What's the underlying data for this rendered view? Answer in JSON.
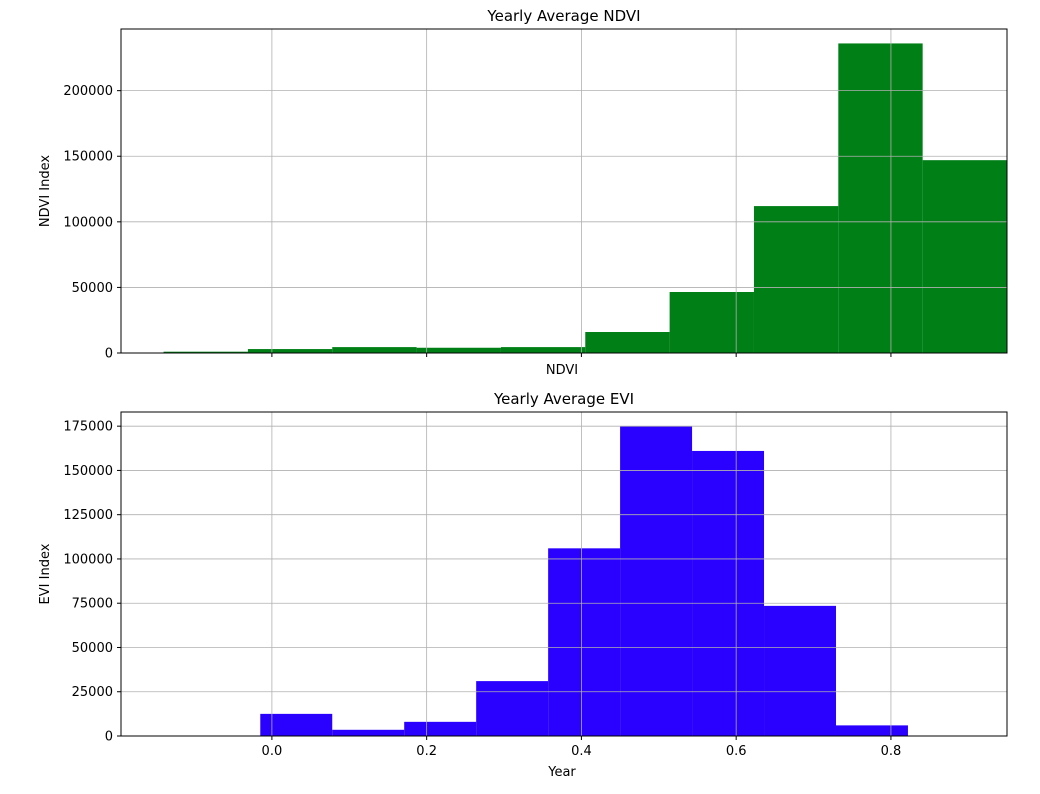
{
  "chart_data": [
    {
      "type": "bar",
      "title": "Yearly Average NDVI",
      "xlabel": "NDVI",
      "ylabel": "NDVI Index",
      "xlim": [
        -0.195,
        0.95
      ],
      "ylim": [
        0,
        247000
      ],
      "x_ticks": [
        0.0,
        0.2,
        0.4,
        0.6,
        0.8
      ],
      "x_tick_labels_shown": false,
      "y_ticks": [
        0,
        50000,
        100000,
        150000,
        200000
      ],
      "grid": true,
      "color": "#007f17",
      "bins": [
        {
          "x0": -0.14,
          "x1": -0.031,
          "value": 1000
        },
        {
          "x0": -0.031,
          "x1": 0.078,
          "value": 3000
        },
        {
          "x0": 0.078,
          "x1": 0.187,
          "value": 4500
        },
        {
          "x0": 0.187,
          "x1": 0.296,
          "value": 4000
        },
        {
          "x0": 0.296,
          "x1": 0.405,
          "value": 4500
        },
        {
          "x0": 0.405,
          "x1": 0.514,
          "value": 16000
        },
        {
          "x0": 0.514,
          "x1": 0.623,
          "value": 46500
        },
        {
          "x0": 0.623,
          "x1": 0.732,
          "value": 112000
        },
        {
          "x0": 0.732,
          "x1": 0.841,
          "value": 236000
        },
        {
          "x0": 0.841,
          "x1": 0.95,
          "value": 147000
        }
      ]
    },
    {
      "type": "bar",
      "title": "Yearly Average EVI",
      "xlabel": "Year",
      "ylabel": "EVI Index",
      "xlim": [
        -0.195,
        0.95
      ],
      "ylim": [
        0,
        183000
      ],
      "x_ticks": [
        0.0,
        0.2,
        0.4,
        0.6,
        0.8
      ],
      "x_tick_labels": [
        "0.0",
        "0.2",
        "0.4",
        "0.6",
        "0.8"
      ],
      "x_tick_labels_shown": true,
      "y_ticks": [
        0,
        25000,
        50000,
        75000,
        100000,
        125000,
        150000,
        175000
      ],
      "grid": true,
      "color": "#2a00ff",
      "bins": [
        {
          "x0": -0.015,
          "x1": 0.078,
          "value": 12500
        },
        {
          "x0": 0.078,
          "x1": 0.171,
          "value": 3500
        },
        {
          "x0": 0.171,
          "x1": 0.264,
          "value": 8000
        },
        {
          "x0": 0.264,
          "x1": 0.357,
          "value": 31000
        },
        {
          "x0": 0.357,
          "x1": 0.45,
          "value": 106000
        },
        {
          "x0": 0.45,
          "x1": 0.543,
          "value": 175000
        },
        {
          "x0": 0.543,
          "x1": 0.636,
          "value": 161000
        },
        {
          "x0": 0.636,
          "x1": 0.729,
          "value": 73500
        },
        {
          "x0": 0.729,
          "x1": 0.822,
          "value": 6000
        }
      ]
    }
  ]
}
